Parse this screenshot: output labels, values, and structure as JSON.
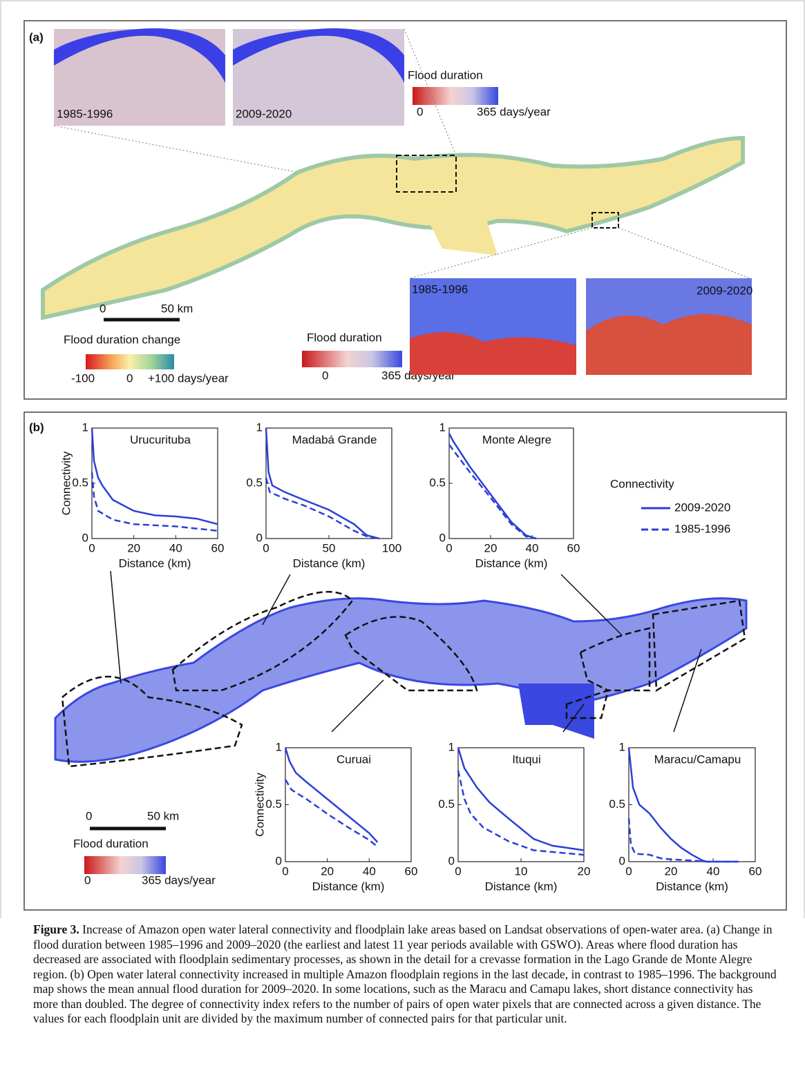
{
  "panel_a": {
    "label": "(a)",
    "inset_top": [
      {
        "label": "1985-1996"
      },
      {
        "label": "2009-2020"
      }
    ],
    "top_colorbar": {
      "title": "Flood duration",
      "min": "0",
      "max": "365 days/year"
    },
    "scale_bar": {
      "start": "0",
      "end": "50 km"
    },
    "change_colorbar": {
      "title": "Flood duration  change",
      "min": "-100",
      "mid": "0",
      "max": "+100 days/year"
    },
    "bottom_colorbar": {
      "title": "Flood duration",
      "min": "0",
      "max": "365 days/year"
    },
    "inset_bottom": [
      {
        "label": "1985-1996"
      },
      {
        "label": "2009-2020"
      }
    ]
  },
  "panel_b": {
    "label": "(b)",
    "legend_title": "Connectivity",
    "scale_bar": {
      "start": "0",
      "end": "50 km"
    },
    "colorbar": {
      "title": "Flood duration",
      "min": "0",
      "max": "365 days/year"
    }
  },
  "chart_data": [
    {
      "type": "line",
      "title": "Urucurituba",
      "x_label": "Distance (km)",
      "y_label": "Connectivity",
      "xlim": [
        0,
        60
      ],
      "xticks": [
        0,
        20,
        40,
        60
      ],
      "ylim": [
        0,
        1
      ],
      "yticks": [
        0,
        0.5,
        1
      ],
      "series": [
        {
          "name": "2009-2020",
          "color": "#2a3fd6",
          "style": "solid",
          "x": [
            0,
            1,
            3,
            5,
            10,
            20,
            30,
            40,
            50,
            60
          ],
          "values": [
            1,
            0.7,
            0.55,
            0.48,
            0.35,
            0.25,
            0.21,
            0.2,
            0.18,
            0.13
          ]
        },
        {
          "name": "1985-1996",
          "color": "#2a3fd6",
          "style": "dashed",
          "x": [
            0,
            1,
            3,
            10,
            20,
            40,
            60
          ],
          "values": [
            0.6,
            0.38,
            0.25,
            0.17,
            0.13,
            0.11,
            0.07
          ]
        }
      ]
    },
    {
      "type": "line",
      "title": "Madabá  Grande",
      "x_label": "Distance (km)",
      "xlim": [
        0,
        100
      ],
      "xticks": [
        0,
        50,
        100
      ],
      "ylim": [
        0,
        1
      ],
      "yticks": [
        0,
        0.5,
        1
      ],
      "series": [
        {
          "name": "2009-2020",
          "color": "#2a3fd6",
          "style": "solid",
          "x": [
            0,
            2,
            5,
            15,
            30,
            50,
            70,
            80,
            90
          ],
          "values": [
            1,
            0.6,
            0.48,
            0.42,
            0.35,
            0.26,
            0.13,
            0.03,
            0
          ]
        },
        {
          "name": "1985-1996",
          "color": "#2a3fd6",
          "style": "dashed",
          "x": [
            0,
            3,
            15,
            30,
            50,
            70,
            80,
            90
          ],
          "values": [
            0.55,
            0.42,
            0.36,
            0.3,
            0.2,
            0.07,
            0.02,
            0
          ]
        }
      ]
    },
    {
      "type": "line",
      "title": "Monte Alegre",
      "x_label": "Distance (km)",
      "xlim": [
        0,
        60
      ],
      "xticks": [
        0,
        20,
        40,
        60
      ],
      "ylim": [
        0,
        1
      ],
      "yticks": [
        0,
        0.5,
        1
      ],
      "series": [
        {
          "name": "2009-2020",
          "color": "#2a3fd6",
          "style": "solid",
          "x": [
            0,
            2,
            10,
            20,
            30,
            37,
            42
          ],
          "values": [
            0.95,
            0.88,
            0.65,
            0.4,
            0.15,
            0.03,
            0
          ]
        },
        {
          "name": "1985-1996",
          "color": "#2a3fd6",
          "style": "dashed",
          "x": [
            0,
            2,
            10,
            20,
            30,
            37,
            42
          ],
          "values": [
            0.85,
            0.8,
            0.6,
            0.37,
            0.13,
            0.02,
            0
          ]
        }
      ]
    },
    {
      "type": "line",
      "title": "Curuai",
      "x_label": "Distance (km)",
      "y_label": "Connectivity",
      "xlim": [
        0,
        60
      ],
      "xticks": [
        0,
        20,
        40,
        60
      ],
      "ylim": [
        0,
        1
      ],
      "yticks": [
        0,
        0.5,
        1
      ],
      "series": [
        {
          "name": "2009-2020",
          "color": "#2a3fd6",
          "style": "solid",
          "x": [
            0,
            2,
            5,
            10,
            20,
            30,
            40,
            44
          ],
          "values": [
            1,
            0.88,
            0.78,
            0.7,
            0.55,
            0.4,
            0.25,
            0.17
          ]
        },
        {
          "name": "1985-1996",
          "color": "#2a3fd6",
          "style": "dashed",
          "x": [
            0,
            3,
            10,
            20,
            30,
            40,
            44
          ],
          "values": [
            0.72,
            0.63,
            0.55,
            0.42,
            0.3,
            0.19,
            0.13
          ]
        }
      ]
    },
    {
      "type": "line",
      "title": "Ituqui",
      "x_label": "Distance (km)",
      "xlim": [
        0,
        20
      ],
      "xticks": [
        0,
        10,
        20
      ],
      "ylim": [
        0,
        1
      ],
      "yticks": [
        0,
        0.5,
        1
      ],
      "series": [
        {
          "name": "2009-2020",
          "color": "#2a3fd6",
          "style": "solid",
          "x": [
            0,
            1,
            3,
            5,
            8,
            12,
            15,
            20
          ],
          "values": [
            1,
            0.82,
            0.65,
            0.52,
            0.38,
            0.2,
            0.14,
            0.1
          ]
        },
        {
          "name": "1985-1996",
          "color": "#2a3fd6",
          "style": "dashed",
          "x": [
            0,
            1,
            2,
            4,
            8,
            12,
            20
          ],
          "values": [
            0.8,
            0.55,
            0.42,
            0.3,
            0.18,
            0.1,
            0.06
          ]
        }
      ]
    },
    {
      "type": "line",
      "title": "Maracu/Camapu",
      "x_label": "Distance (km)",
      "xlim": [
        0,
        60
      ],
      "xticks": [
        0,
        20,
        40,
        60
      ],
      "ylim": [
        0,
        1
      ],
      "yticks": [
        0,
        0.5,
        1
      ],
      "series": [
        {
          "name": "2009-2020",
          "color": "#2a3fd6",
          "style": "solid",
          "x": [
            0,
            2,
            5,
            10,
            15,
            20,
            25,
            30,
            35,
            37,
            52
          ],
          "values": [
            1,
            0.65,
            0.5,
            0.42,
            0.3,
            0.2,
            0.12,
            0.06,
            0.01,
            0,
            0
          ]
        },
        {
          "name": "1985-1996",
          "color": "#2a3fd6",
          "style": "dashed",
          "x": [
            0,
            1,
            3,
            10,
            15,
            20,
            30,
            37,
            52
          ],
          "values": [
            0.38,
            0.15,
            0.07,
            0.06,
            0.03,
            0.02,
            0.01,
            0,
            0
          ]
        }
      ]
    }
  ],
  "caption": {
    "label": "Figure 3.",
    "text": "Increase of Amazon open water lateral connectivity and floodplain lake areas based on Landsat observations of open-water area. (a) Change in flood duration between 1985–1996 and 2009–2020 (the earliest and latest 11 year periods available with GSWO). Areas where flood duration has decreased are associated with floodplain sedimentary processes, as shown in the detail for a crevasse formation in the Lago Grande de Monte Alegre region. (b) Open water lateral connectivity increased in multiple Amazon floodplain regions in the last decade, in contrast to 1985–1996. The background map shows the mean annual flood duration for 2009–2020. In some locations, such as the Maracu and Camapu lakes, short distance connectivity has more than doubled. The degree of connectivity index refers to the number of pairs of open water pixels that are connected across a given distance. The values for each floodplain unit are divided by the maximum number of connected pairs for that particular unit."
  }
}
